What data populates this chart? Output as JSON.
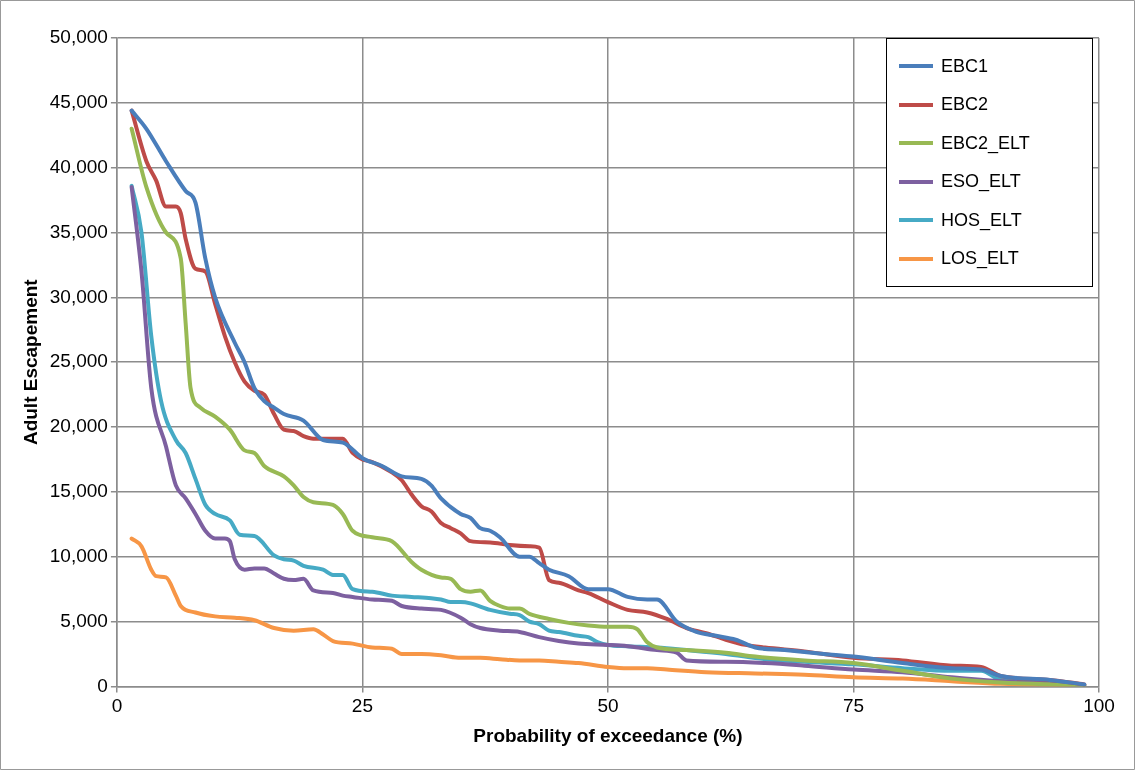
{
  "chart_data": {
    "type": "line",
    "xlabel": "Probability of exceedance (%)",
    "ylabel": "Adult Escapement",
    "xlim": [
      0,
      100
    ],
    "xticks": [
      0,
      25,
      50,
      75,
      100
    ],
    "ylim": [
      0,
      50000
    ],
    "yticks": [
      0,
      {
        "value": 5000,
        "label": "5,000"
      },
      {
        "value": 10000,
        "label": "10,000"
      },
      {
        "value": 15000,
        "label": "15,000"
      },
      {
        "value": 20000,
        "label": "20,000"
      },
      {
        "value": 25000,
        "label": "25,000"
      },
      {
        "value": 30000,
        "label": "30,000"
      },
      {
        "value": 35000,
        "label": "35,000"
      },
      {
        "value": 40000,
        "label": "40,000"
      },
      {
        "value": 45000,
        "label": "45,000"
      },
      {
        "value": 50000,
        "label": "50,000"
      }
    ],
    "grid": true,
    "legend": "top right",
    "marker": "none",
    "line_style": "solid",
    "series": [
      {
        "name": "EBC1",
        "color": "#4a7ebb",
        "x": [
          1.5,
          3,
          5,
          7,
          8,
          9,
          10,
          12,
          13,
          14,
          15,
          16,
          17,
          19,
          21,
          23,
          25,
          27,
          29,
          31,
          32,
          33,
          35,
          36,
          37,
          38,
          39,
          41,
          42,
          43,
          44,
          46,
          48,
          50,
          52,
          54,
          55,
          57,
          59,
          61,
          63,
          65,
          68,
          72,
          75,
          80,
          85,
          88,
          90,
          95,
          98.5
        ],
        "values": [
          44400,
          43000,
          40500,
          38200,
          37300,
          33000,
          30000,
          26500,
          25000,
          23000,
          22000,
          21500,
          21000,
          20500,
          19000,
          18800,
          17600,
          17000,
          16200,
          16000,
          15500,
          14500,
          13300,
          13000,
          12200,
          12000,
          11500,
          10000,
          10000,
          9500,
          9000,
          8500,
          7500,
          7500,
          6900,
          6700,
          6700,
          5000,
          4200,
          3900,
          3600,
          3000,
          2800,
          2500,
          2300,
          1800,
          1400,
          1300,
          800,
          500,
          150
        ]
      },
      {
        "name": "EBC2",
        "color": "#be4b48",
        "x": [
          1.5,
          3,
          4,
          5,
          6,
          6.5,
          7,
          8,
          9,
          10,
          11,
          12,
          13,
          14,
          15,
          16,
          17,
          18,
          19,
          20,
          22,
          23,
          24,
          25,
          26,
          28,
          29,
          30,
          31,
          32,
          33,
          34,
          35,
          36,
          38,
          40,
          42,
          43,
          44,
          45,
          47,
          48,
          50,
          52,
          54,
          56,
          58,
          60,
          62,
          64,
          66,
          70,
          75,
          80,
          85,
          88,
          90,
          95,
          98.5
        ],
        "values": [
          44400,
          40500,
          39000,
          37000,
          37000,
          36500,
          34500,
          32200,
          32000,
          29500,
          27000,
          25000,
          23500,
          22800,
          22500,
          21000,
          19800,
          19700,
          19300,
          19100,
          19100,
          19100,
          18000,
          17500,
          17300,
          16500,
          15900,
          14800,
          13900,
          13500,
          12600,
          12200,
          11800,
          11200,
          11100,
          10900,
          10800,
          10700,
          8200,
          8000,
          7400,
          7200,
          6500,
          5900,
          5700,
          5200,
          4500,
          4100,
          3600,
          3200,
          3000,
          2700,
          2200,
          2000,
          1600,
          1500,
          800,
          500,
          150
        ]
      },
      {
        "name": "EBC2_ELT",
        "color": "#98b954",
        "x": [
          1.5,
          3,
          5,
          6.5,
          7,
          7.5,
          8.5,
          10,
          11.5,
          13,
          14,
          15,
          17,
          18,
          19,
          20,
          22,
          23,
          24,
          26,
          28,
          30,
          31,
          33,
          34,
          35,
          36,
          37,
          38,
          39,
          40,
          41,
          42,
          44,
          46,
          48,
          50,
          52,
          53,
          54,
          55,
          58,
          62,
          65,
          70,
          75,
          80,
          85,
          90,
          98.5
        ],
        "values": [
          43000,
          38500,
          35000,
          33000,
          28000,
          23000,
          21500,
          20800,
          19800,
          18200,
          18000,
          17000,
          16200,
          15500,
          14600,
          14200,
          14000,
          13300,
          12000,
          11500,
          11200,
          9600,
          9000,
          8400,
          8300,
          7500,
          7300,
          7400,
          6600,
          6200,
          6000,
          6000,
          5600,
          5200,
          4900,
          4700,
          4600,
          4600,
          4400,
          3400,
          3000,
          2800,
          2600,
          2300,
          2000,
          1800,
          1200,
          600,
          300,
          100
        ]
      },
      {
        "name": "ESO_ELT",
        "color": "#7d60a0",
        "x": [
          1.5,
          2.5,
          3.5,
          5,
          6,
          7,
          8,
          9,
          10,
          11,
          11.5,
          12,
          13,
          14,
          15,
          16,
          17,
          18,
          19,
          20,
          22,
          23,
          24,
          26,
          28,
          29,
          31,
          33,
          35,
          36,
          37,
          39,
          41,
          43,
          45,
          47,
          50,
          52,
          55,
          57,
          58,
          62,
          66,
          70,
          75,
          80,
          85,
          90,
          98.5
        ],
        "values": [
          38500,
          32000,
          23000,
          18500,
          15500,
          14500,
          13300,
          12000,
          11400,
          11400,
          11200,
          9800,
          9000,
          9100,
          9100,
          8700,
          8300,
          8200,
          8300,
          7400,
          7200,
          7000,
          6900,
          6700,
          6600,
          6200,
          6000,
          5900,
          5300,
          4800,
          4500,
          4300,
          4200,
          3800,
          3500,
          3300,
          3200,
          3100,
          2800,
          2600,
          2000,
          1900,
          1800,
          1600,
          1300,
          1100,
          700,
          400,
          100
        ]
      },
      {
        "name": "HOS_ELT",
        "color": "#46aac5",
        "x": [
          1.5,
          2.5,
          3.5,
          4.5,
          6,
          7,
          8,
          9,
          10,
          11.5,
          12.5,
          14,
          16,
          17,
          18,
          19,
          21,
          22,
          23,
          24,
          26,
          28,
          30,
          32,
          33,
          34,
          35,
          36,
          38,
          40,
          41,
          42,
          43,
          44,
          45,
          47,
          48,
          49,
          50,
          52,
          55,
          58,
          62,
          66,
          70,
          75,
          80,
          85,
          88,
          90,
          95,
          98.5
        ],
        "values": [
          38600,
          35000,
          27000,
          22000,
          19000,
          18000,
          16000,
          14000,
          13300,
          12800,
          11700,
          11600,
          10100,
          9800,
          9700,
          9300,
          9000,
          8600,
          8600,
          7500,
          7300,
          7000,
          6900,
          6800,
          6700,
          6500,
          6500,
          6400,
          5900,
          5600,
          5500,
          5000,
          4800,
          4300,
          4200,
          3900,
          3800,
          3400,
          3200,
          3100,
          3000,
          2800,
          2500,
          2100,
          1900,
          1700,
          1400,
          1200,
          1200,
          500,
          300,
          100
        ]
      },
      {
        "name": "LOS_ELT",
        "color": "#f79646",
        "x": [
          1.5,
          2.5,
          3.5,
          4,
          5,
          6,
          6.5,
          8,
          10,
          12,
          14,
          16,
          18,
          20,
          21,
          22,
          24,
          26,
          28,
          29,
          31,
          33,
          35,
          37,
          39,
          41,
          43,
          45,
          47,
          50,
          52,
          54,
          56,
          60,
          65,
          70,
          75,
          80,
          85,
          90,
          98.5
        ],
        "values": [
          11400,
          10800,
          9000,
          8500,
          8400,
          7000,
          6200,
          5700,
          5400,
          5300,
          5100,
          4500,
          4300,
          4400,
          4000,
          3500,
          3300,
          3000,
          2900,
          2500,
          2500,
          2400,
          2200,
          2200,
          2100,
          2000,
          2000,
          1900,
          1800,
          1500,
          1400,
          1400,
          1300,
          1100,
          1000,
          900,
          700,
          600,
          400,
          200,
          100
        ]
      }
    ]
  }
}
